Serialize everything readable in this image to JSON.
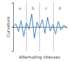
{
  "chart_data": {
    "type": "line",
    "x_label": "Alternating stresses",
    "y_label": "Curvature",
    "x": [
      0,
      1,
      2,
      3,
      4,
      5,
      6,
      7,
      8,
      9,
      10,
      11,
      12,
      13,
      14,
      15,
      16,
      17,
      18,
      19,
      20
    ],
    "values": [
      0,
      0.4,
      -0.6,
      0.8,
      -1.2,
      0.5,
      -0.3,
      1.6,
      -1.4,
      0.6,
      -0.2,
      0.9,
      -0.8,
      1.2,
      -0.5,
      0.3,
      -0.9,
      0.7,
      -0.4,
      0.2,
      0
    ],
    "color": "#3a7fc0",
    "xlim": [
      0,
      20
    ],
    "ylim": [
      -3,
      3
    ],
    "xticks": [
      0,
      5,
      10,
      15,
      20
    ],
    "yticks": [
      -3,
      0,
      3
    ],
    "tick_labels": false,
    "grid": false,
    "sections": [
      5,
      10,
      15
    ],
    "annotations": [
      {
        "text": "a",
        "x": 2.5,
        "y": 2.4
      },
      {
        "text": "b",
        "x": 7.5,
        "y": 2.4
      },
      {
        "text": "c",
        "x": 12.5,
        "y": 2.4
      },
      {
        "text": "d",
        "x": 17.5,
        "y": 2.4
      }
    ]
  }
}
